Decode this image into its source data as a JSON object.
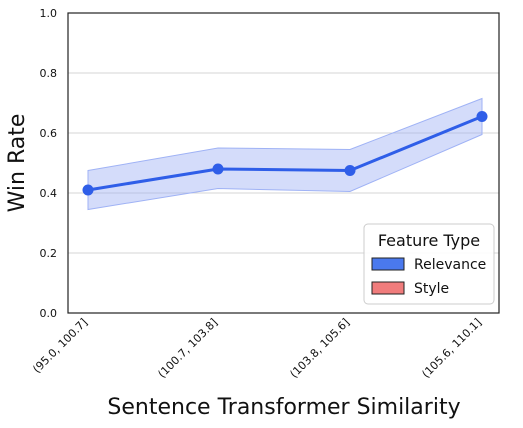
{
  "chart_data": {
    "type": "line",
    "xlabel": "Sentence Transformer Similarity",
    "ylabel": "Win Rate",
    "ylim": [
      0.0,
      1.0
    ],
    "yticks": [
      "0.0",
      "0.2",
      "0.4",
      "0.6",
      "0.8",
      "1.0"
    ],
    "categories": [
      "(95.0, 100.7]",
      "(100.7, 103.8]",
      "(103.8, 105.6]",
      "(105.6, 110.1]"
    ],
    "grid": "horizontal",
    "series": [
      {
        "name": "Relevance",
        "values": [
          0.41,
          0.48,
          0.475,
          0.655
        ],
        "ci_lower": [
          0.345,
          0.415,
          0.405,
          0.595
        ],
        "ci_upper": [
          0.475,
          0.55,
          0.545,
          0.715
        ],
        "color": "#2f5ee8",
        "fill": "#9fb2f5"
      }
    ],
    "legend": {
      "title": "Feature Type",
      "placement": "lower-right",
      "entries": [
        {
          "label": "Relevance",
          "color": "#4a79ee"
        },
        {
          "label": "Style",
          "color": "#f07c7c"
        }
      ]
    }
  }
}
